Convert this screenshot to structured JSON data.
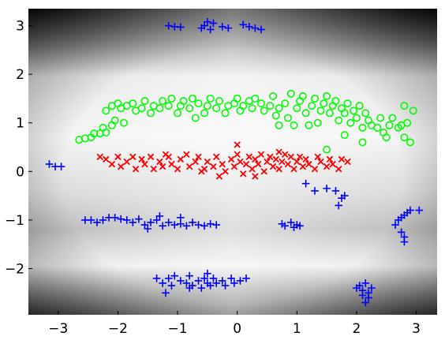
{
  "chart_data": {
    "type": "scatter",
    "title": "",
    "xlabel": "",
    "ylabel": "",
    "xlim": [
      -3.5,
      3.35
    ],
    "ylim": [
      -2.95,
      3.35
    ],
    "grid": false,
    "legend": "none",
    "background": "grayscale-density",
    "x_ticks": [
      -3,
      -2,
      -1,
      0,
      1,
      2,
      3
    ],
    "y_ticks": [
      -2,
      -1,
      0,
      1,
      2,
      3
    ],
    "x_tick_labels": [
      "−3",
      "−2",
      "−1",
      "0",
      "1",
      "2",
      "3"
    ],
    "y_tick_labels": [
      "−2",
      "−1",
      "0",
      "1",
      "2",
      "3"
    ],
    "series": [
      {
        "marker": "circle",
        "color": "#00ff00",
        "points": [
          [
            -2.65,
            0.65
          ],
          [
            -2.55,
            0.68
          ],
          [
            -2.45,
            0.7
          ],
          [
            -2.4,
            0.78
          ],
          [
            -2.3,
            0.78
          ],
          [
            -2.25,
            0.9
          ],
          [
            -2.2,
            0.8
          ],
          [
            -2.1,
            0.95
          ],
          [
            -2.05,
            1.05
          ],
          [
            -1.9,
            1.0
          ],
          [
            -2.2,
            1.25
          ],
          [
            -2.1,
            1.35
          ],
          [
            -2.0,
            1.4
          ],
          [
            -1.95,
            1.3
          ],
          [
            -1.85,
            1.35
          ],
          [
            -1.75,
            1.4
          ],
          [
            -1.7,
            1.25
          ],
          [
            -1.6,
            1.3
          ],
          [
            -1.55,
            1.45
          ],
          [
            -1.45,
            1.2
          ],
          [
            -1.4,
            1.35
          ],
          [
            -1.3,
            1.3
          ],
          [
            -1.25,
            1.45
          ],
          [
            -1.15,
            1.35
          ],
          [
            -1.1,
            1.5
          ],
          [
            -1.0,
            1.2
          ],
          [
            -0.95,
            1.35
          ],
          [
            -0.9,
            1.45
          ],
          [
            -0.8,
            1.3
          ],
          [
            -0.75,
            1.5
          ],
          [
            -0.7,
            1.1
          ],
          [
            -0.65,
            1.4
          ],
          [
            -0.55,
            1.2
          ],
          [
            -0.5,
            1.35
          ],
          [
            -0.45,
            1.5
          ],
          [
            -0.35,
            1.3
          ],
          [
            -0.3,
            1.45
          ],
          [
            -0.2,
            1.2
          ],
          [
            -0.15,
            1.35
          ],
          [
            -0.05,
            1.4
          ],
          [
            0.0,
            1.5
          ],
          [
            0.05,
            1.25
          ],
          [
            0.1,
            1.35
          ],
          [
            0.2,
            1.45
          ],
          [
            0.25,
            1.3
          ],
          [
            0.3,
            1.5
          ],
          [
            0.4,
            1.4
          ],
          [
            0.45,
            1.25
          ],
          [
            0.55,
            1.35
          ],
          [
            0.6,
            1.55
          ],
          [
            0.65,
            1.15
          ],
          [
            0.7,
            1.3
          ],
          [
            0.8,
            1.4
          ],
          [
            0.85,
            1.1
          ],
          [
            0.7,
            0.95
          ],
          [
            0.9,
            1.6
          ],
          [
            1.0,
            1.3
          ],
          [
            1.05,
            1.45
          ],
          [
            1.1,
            1.55
          ],
          [
            1.15,
            1.2
          ],
          [
            1.25,
            1.35
          ],
          [
            1.3,
            1.5
          ],
          [
            1.35,
            1.0
          ],
          [
            1.4,
            1.25
          ],
          [
            1.45,
            1.4
          ],
          [
            1.5,
            1.55
          ],
          [
            1.55,
            1.2
          ],
          [
            1.6,
            1.35
          ],
          [
            1.65,
            1.45
          ],
          [
            1.7,
            1.05
          ],
          [
            1.75,
            1.3
          ],
          [
            1.8,
            1.2
          ],
          [
            1.85,
            1.4
          ],
          [
            1.9,
            1.0
          ],
          [
            1.95,
            1.25
          ],
          [
            2.0,
            1.1
          ],
          [
            2.05,
            1.35
          ],
          [
            2.1,
            0.9
          ],
          [
            2.15,
            1.2
          ],
          [
            2.2,
            1.05
          ],
          [
            2.25,
            0.95
          ],
          [
            2.35,
            0.9
          ],
          [
            2.4,
            1.1
          ],
          [
            2.45,
            0.8
          ],
          [
            2.5,
            0.7
          ],
          [
            2.55,
            0.95
          ],
          [
            2.6,
            1.1
          ],
          [
            2.7,
            0.9
          ],
          [
            2.8,
            0.7
          ],
          [
            2.75,
            0.95
          ],
          [
            2.85,
            1.0
          ],
          [
            2.9,
            0.6
          ],
          [
            2.95,
            1.25
          ],
          [
            2.8,
            1.35
          ],
          [
            1.8,
            0.75
          ],
          [
            1.5,
            0.45
          ],
          [
            2.1,
            0.6
          ],
          [
            1.2,
            0.95
          ],
          [
            0.95,
            0.95
          ]
        ]
      },
      {
        "marker": "x",
        "color": "#ff0000",
        "points": [
          [
            -2.3,
            0.3
          ],
          [
            -2.2,
            0.25
          ],
          [
            -2.1,
            0.15
          ],
          [
            -2.0,
            0.3
          ],
          [
            -1.95,
            0.1
          ],
          [
            -1.85,
            0.2
          ],
          [
            -1.75,
            0.3
          ],
          [
            -1.7,
            0.05
          ],
          [
            -1.6,
            0.25
          ],
          [
            -1.55,
            0.15
          ],
          [
            -1.45,
            0.3
          ],
          [
            -1.4,
            0.05
          ],
          [
            -1.3,
            0.2
          ],
          [
            -1.25,
            0.1
          ],
          [
            -1.15,
            0.3
          ],
          [
            -1.1,
            0.15
          ],
          [
            -1.0,
            0.05
          ],
          [
            -0.95,
            0.25
          ],
          [
            -0.85,
            0.35
          ],
          [
            -0.8,
            0.1
          ],
          [
            -0.7,
            0.2
          ],
          [
            -0.65,
            0.3
          ],
          [
            -0.55,
            0.05
          ],
          [
            -0.5,
            0.2
          ],
          [
            -0.4,
            0.1
          ],
          [
            -0.35,
            0.3
          ],
          [
            -0.25,
            0.15
          ],
          [
            -0.2,
            0.0
          ],
          [
            -0.1,
            0.25
          ],
          [
            -0.05,
            0.1
          ],
          [
            0.0,
            0.35
          ],
          [
            0.05,
            0.2
          ],
          [
            0.1,
            -0.05
          ],
          [
            0.15,
            0.15
          ],
          [
            0.2,
            0.3
          ],
          [
            0.25,
            0.05
          ],
          [
            0.3,
            0.25
          ],
          [
            0.35,
            0.15
          ],
          [
            0.4,
            0.35
          ],
          [
            0.45,
            0.0
          ],
          [
            0.5,
            0.2
          ],
          [
            0.55,
            0.3
          ],
          [
            0.6,
            0.1
          ],
          [
            0.65,
            0.25
          ],
          [
            0.7,
            0.05
          ],
          [
            0.75,
            0.2
          ],
          [
            0.8,
            0.35
          ],
          [
            0.85,
            0.15
          ],
          [
            0.9,
            0.3
          ],
          [
            0.95,
            0.05
          ],
          [
            1.0,
            0.2
          ],
          [
            1.05,
            0.3
          ],
          [
            1.1,
            0.1
          ],
          [
            1.15,
            0.25
          ],
          [
            1.2,
            0.15
          ],
          [
            1.3,
            0.05
          ],
          [
            1.35,
            0.3
          ],
          [
            1.4,
            0.2
          ],
          [
            1.5,
            0.1
          ],
          [
            1.55,
            0.25
          ],
          [
            1.6,
            0.15
          ],
          [
            1.7,
            0.05
          ],
          [
            1.75,
            0.25
          ],
          [
            1.85,
            0.2
          ],
          [
            0.0,
            0.55
          ],
          [
            -0.3,
            -0.1
          ],
          [
            0.3,
            -0.1
          ],
          [
            -0.6,
            0.0
          ],
          [
            0.7,
            0.4
          ],
          [
            -1.2,
            0.35
          ]
        ]
      },
      {
        "marker": "plus",
        "color": "#0000ff",
        "points": [
          [
            -1.15,
            3.0
          ],
          [
            -1.05,
            2.98
          ],
          [
            -0.95,
            2.97
          ],
          [
            -0.55,
            3.0
          ],
          [
            -0.5,
            3.08
          ],
          [
            -0.45,
            2.92
          ],
          [
            -0.4,
            3.05
          ],
          [
            -0.25,
            2.98
          ],
          [
            -0.15,
            2.95
          ],
          [
            0.1,
            3.02
          ],
          [
            0.2,
            2.98
          ],
          [
            0.3,
            2.95
          ],
          [
            0.4,
            2.92
          ],
          [
            -0.6,
            2.95
          ],
          [
            -3.15,
            0.15
          ],
          [
            -3.05,
            0.1
          ],
          [
            -2.95,
            0.1
          ],
          [
            1.15,
            -0.25
          ],
          [
            1.3,
            -0.4
          ],
          [
            1.5,
            -0.35
          ],
          [
            1.65,
            -0.4
          ],
          [
            1.75,
            -0.55
          ],
          [
            1.7,
            -0.7
          ],
          [
            1.8,
            -0.5
          ],
          [
            -2.55,
            -1.0
          ],
          [
            -2.45,
            -1.0
          ],
          [
            -2.35,
            -1.05
          ],
          [
            -2.25,
            -1.0
          ],
          [
            -2.15,
            -0.95
          ],
          [
            -2.05,
            -0.95
          ],
          [
            -1.95,
            -0.98
          ],
          [
            -1.85,
            -1.0
          ],
          [
            -1.75,
            -1.05
          ],
          [
            -1.65,
            -0.98
          ],
          [
            -1.55,
            -1.1
          ],
          [
            -1.45,
            -1.05
          ],
          [
            -1.35,
            -1.0
          ],
          [
            -1.25,
            -1.12
          ],
          [
            -1.15,
            -1.05
          ],
          [
            -1.05,
            -1.1
          ],
          [
            -0.95,
            -1.08
          ],
          [
            -0.85,
            -1.12
          ],
          [
            -0.75,
            -1.05
          ],
          [
            -0.65,
            -1.1
          ],
          [
            -0.55,
            -1.12
          ],
          [
            -0.45,
            -1.08
          ],
          [
            -0.35,
            -1.1
          ],
          [
            -0.95,
            -0.95
          ],
          [
            -1.5,
            -1.18
          ],
          [
            -1.3,
            -0.92
          ],
          [
            0.75,
            -1.08
          ],
          [
            0.8,
            -1.12
          ],
          [
            0.9,
            -1.05
          ],
          [
            0.95,
            -1.15
          ],
          [
            1.0,
            -1.1
          ],
          [
            1.05,
            -1.12
          ],
          [
            2.65,
            -1.1
          ],
          [
            2.7,
            -1.0
          ],
          [
            2.75,
            -0.95
          ],
          [
            2.8,
            -0.9
          ],
          [
            2.85,
            -0.85
          ],
          [
            2.9,
            -0.8
          ],
          [
            2.75,
            -1.25
          ],
          [
            2.8,
            -1.35
          ],
          [
            2.8,
            -1.45
          ],
          [
            3.05,
            -0.8
          ],
          [
            -1.35,
            -2.2
          ],
          [
            -1.25,
            -2.3
          ],
          [
            -1.15,
            -2.2
          ],
          [
            -1.1,
            -2.35
          ],
          [
            -1.05,
            -2.15
          ],
          [
            -0.95,
            -2.25
          ],
          [
            -0.85,
            -2.3
          ],
          [
            -0.8,
            -2.15
          ],
          [
            -0.75,
            -2.35
          ],
          [
            -0.65,
            -2.25
          ],
          [
            -0.55,
            -2.2
          ],
          [
            -0.5,
            -2.3
          ],
          [
            -0.45,
            -2.35
          ],
          [
            -0.4,
            -2.2
          ],
          [
            -0.35,
            -2.3
          ],
          [
            -0.25,
            -2.25
          ],
          [
            -0.2,
            -2.35
          ],
          [
            -0.1,
            -2.2
          ],
          [
            -0.05,
            -2.3
          ],
          [
            0.05,
            -2.25
          ],
          [
            0.15,
            -2.2
          ],
          [
            -0.5,
            -2.1
          ],
          [
            -0.8,
            -2.4
          ],
          [
            -1.2,
            -2.5
          ],
          [
            -0.6,
            -2.4
          ],
          [
            2.0,
            -2.4
          ],
          [
            2.05,
            -2.35
          ],
          [
            2.1,
            -2.45
          ],
          [
            2.15,
            -2.3
          ],
          [
            2.2,
            -2.5
          ],
          [
            2.2,
            -2.6
          ],
          [
            2.15,
            -2.7
          ],
          [
            2.25,
            -2.4
          ],
          [
            2.1,
            -2.55
          ]
        ]
      }
    ]
  }
}
